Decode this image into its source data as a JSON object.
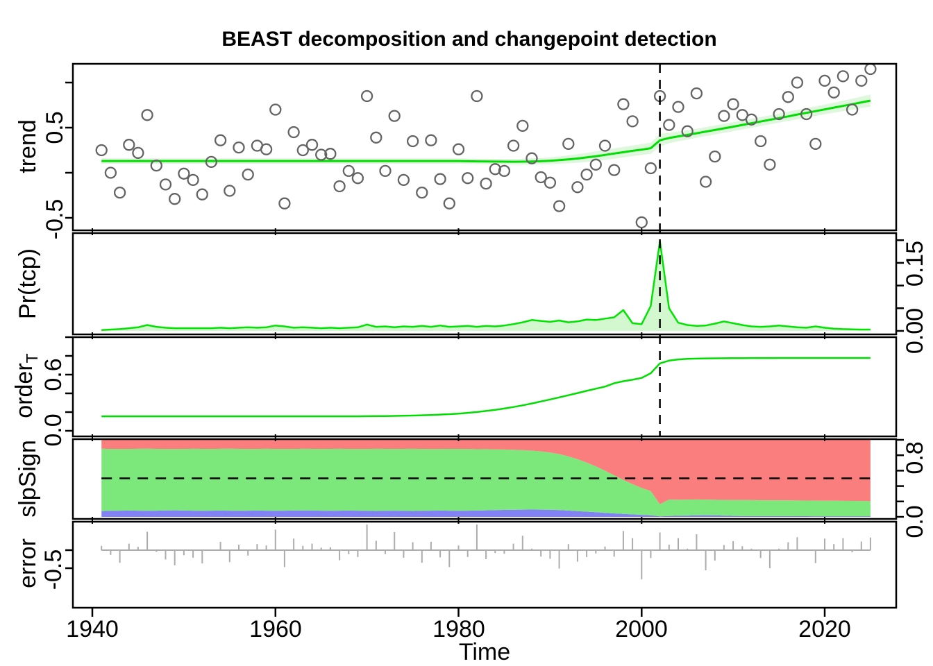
{
  "title": "BEAST decomposition and changepoint detection",
  "x_axis": {
    "label": "Time",
    "tick_years": [
      1940,
      1960,
      1980,
      2000,
      2020
    ],
    "ticks": [
      {
        "label": "1940"
      },
      {
        "label": "1960"
      },
      {
        "label": "1980"
      },
      {
        "label": "2000"
      },
      {
        "label": "2020"
      }
    ]
  },
  "panel_labels": {
    "trend": "trend",
    "pr": "Pr(tcp)",
    "order_base": "order",
    "order_sub": "T",
    "slp": "slpSign",
    "error": "error"
  },
  "tick_labels": {
    "trend_upper": "0.5",
    "trend_lower": "-0.5",
    "pr_upper": "0.15",
    "pr_lower": "0.00",
    "order_upper": "0.6",
    "order_lower": "0.0",
    "slp_upper": "0.8",
    "slp_lower": "0.0",
    "error": "-0.5"
  },
  "colors": {
    "trend_line": "#00DD00",
    "ci_band": "#DFF7DD",
    "scatter_stroke": "#646464",
    "pr_line": "#00E400",
    "pr_fill": "#D3F8D0",
    "order_line": "#00DD00",
    "slp_red": "#FB7E7E",
    "slp_green": "#7CE87C",
    "slp_blue": "#8282F5",
    "error_stem": "#ACACAC",
    "dashed": "#000000"
  },
  "years": [
    1941,
    1942,
    1943,
    1944,
    1945,
    1946,
    1947,
    1948,
    1949,
    1950,
    1951,
    1952,
    1953,
    1954,
    1955,
    1956,
    1957,
    1958,
    1959,
    1960,
    1961,
    1962,
    1963,
    1964,
    1965,
    1966,
    1967,
    1968,
    1969,
    1970,
    1971,
    1972,
    1973,
    1974,
    1975,
    1976,
    1977,
    1978,
    1979,
    1980,
    1981,
    1982,
    1983,
    1984,
    1985,
    1986,
    1987,
    1988,
    1989,
    1990,
    1991,
    1992,
    1993,
    1994,
    1995,
    1996,
    1997,
    1998,
    1999,
    2000,
    2001,
    2002,
    2003,
    2004,
    2005,
    2006,
    2007,
    2008,
    2009,
    2010,
    2011,
    2012,
    2013,
    2014,
    2015,
    2016,
    2017,
    2018,
    2019,
    2020,
    2021,
    2022,
    2023,
    2024,
    2025
  ],
  "chart_data": [
    {
      "type": "scatter",
      "panel": "trend",
      "ylabel": "trend",
      "ylim": [
        -0.62,
        1.22
      ],
      "yticks": [
        -0.5,
        0,
        0.5,
        1
      ],
      "ytick_labels_shown": [
        "0.5",
        "-0.5"
      ],
      "changepoint_year": 2002,
      "scatter": [
        0.25,
        0.0,
        -0.22,
        0.31,
        0.22,
        0.64,
        0.08,
        -0.13,
        -0.29,
        -0.01,
        -0.08,
        -0.24,
        0.12,
        0.36,
        -0.2,
        0.28,
        -0.02,
        0.3,
        0.26,
        0.7,
        -0.34,
        0.45,
        0.25,
        0.31,
        0.2,
        0.21,
        -0.15,
        0.02,
        -0.06,
        0.85,
        0.39,
        0.02,
        0.63,
        -0.08,
        0.35,
        -0.22,
        0.36,
        -0.07,
        -0.34,
        0.26,
        -0.06,
        0.85,
        -0.12,
        0.04,
        0.02,
        0.3,
        0.52,
        0.16,
        -0.05,
        -0.11,
        -0.37,
        0.32,
        -0.16,
        -0.02,
        0.09,
        0.3,
        0.03,
        0.76,
        0.57,
        -0.55,
        0.05,
        0.85,
        0.53,
        0.73,
        0.46,
        0.88,
        -0.1,
        0.18,
        0.63,
        0.76,
        0.64,
        0.59,
        0.35,
        0.09,
        0.65,
        0.84,
        1.0,
        0.65,
        0.32,
        1.02,
        0.89,
        1.07,
        0.7,
        1.02,
        1.15
      ],
      "trend_line": [
        0.13,
        0.13,
        0.13,
        0.13,
        0.13,
        0.13,
        0.13,
        0.13,
        0.13,
        0.13,
        0.13,
        0.13,
        0.13,
        0.13,
        0.13,
        0.13,
        0.13,
        0.13,
        0.13,
        0.13,
        0.13,
        0.13,
        0.13,
        0.13,
        0.13,
        0.13,
        0.13,
        0.13,
        0.13,
        0.13,
        0.13,
        0.13,
        0.13,
        0.13,
        0.13,
        0.13,
        0.13,
        0.13,
        0.13,
        0.13,
        0.128,
        0.126,
        0.125,
        0.124,
        0.123,
        0.122,
        0.123,
        0.125,
        0.128,
        0.133,
        0.14,
        0.148,
        0.158,
        0.17,
        0.183,
        0.198,
        0.213,
        0.228,
        0.243,
        0.256,
        0.272,
        0.36,
        0.385,
        0.403,
        0.42,
        0.438,
        0.456,
        0.474,
        0.492,
        0.511,
        0.53,
        0.549,
        0.568,
        0.587,
        0.606,
        0.625,
        0.645,
        0.664,
        0.683,
        0.702,
        0.722,
        0.741,
        0.76,
        0.78,
        0.8
      ],
      "ci_halfwidth": [
        0.03,
        0.03,
        0.03,
        0.03,
        0.03,
        0.03,
        0.03,
        0.03,
        0.03,
        0.03,
        0.03,
        0.03,
        0.03,
        0.03,
        0.03,
        0.03,
        0.03,
        0.03,
        0.03,
        0.03,
        0.03,
        0.03,
        0.03,
        0.03,
        0.03,
        0.03,
        0.03,
        0.03,
        0.03,
        0.03,
        0.03,
        0.03,
        0.03,
        0.03,
        0.03,
        0.03,
        0.03,
        0.03,
        0.03,
        0.03,
        0.03,
        0.03,
        0.03,
        0.03,
        0.03,
        0.031,
        0.032,
        0.034,
        0.036,
        0.038,
        0.041,
        0.044,
        0.047,
        0.05,
        0.053,
        0.055,
        0.057,
        0.058,
        0.059,
        0.06,
        0.062,
        0.07,
        0.058,
        0.054,
        0.052,
        0.05,
        0.05,
        0.05,
        0.05,
        0.05,
        0.05,
        0.05,
        0.05,
        0.05,
        0.05,
        0.051,
        0.052,
        0.052,
        0.053,
        0.054,
        0.056,
        0.058,
        0.061,
        0.064,
        0.068
      ]
    },
    {
      "type": "area",
      "panel": "Pr(tcp)",
      "ylabel": "Pr(tcp)",
      "ylim": [
        0,
        0.215
      ],
      "yticks": [
        0,
        0.05,
        0.1,
        0.15,
        0.2
      ],
      "ytick_labels_shown": [
        "0.00",
        "0.15"
      ],
      "values": [
        0.002,
        0.003,
        0.004,
        0.006,
        0.008,
        0.013,
        0.009,
        0.007,
        0.006,
        0.006,
        0.006,
        0.006,
        0.006,
        0.007,
        0.006,
        0.007,
        0.008,
        0.007,
        0.008,
        0.012,
        0.01,
        0.007,
        0.008,
        0.007,
        0.006,
        0.007,
        0.006,
        0.007,
        0.008,
        0.014,
        0.009,
        0.01,
        0.008,
        0.01,
        0.009,
        0.011,
        0.009,
        0.012,
        0.009,
        0.01,
        0.011,
        0.009,
        0.011,
        0.01,
        0.012,
        0.015,
        0.019,
        0.024,
        0.022,
        0.02,
        0.023,
        0.019,
        0.021,
        0.025,
        0.024,
        0.027,
        0.03,
        0.046,
        0.017,
        0.015,
        0.055,
        0.198,
        0.05,
        0.018,
        0.013,
        0.011,
        0.012,
        0.016,
        0.021,
        0.017,
        0.013,
        0.01,
        0.009,
        0.01,
        0.012,
        0.01,
        0.008,
        0.007,
        0.01,
        0.007,
        0.005,
        0.004,
        0.0035,
        0.003,
        0.003
      ]
    },
    {
      "type": "line",
      "panel": "orderT",
      "ylabel": "order_T",
      "ylim": [
        -0.06,
        1.0
      ],
      "yticks": [
        0,
        0.2,
        0.4,
        0.6,
        0.8,
        1
      ],
      "ytick_labels_shown": [
        "0.0",
        "0.6"
      ],
      "values": [
        0.155,
        0.155,
        0.155,
        0.155,
        0.155,
        0.155,
        0.155,
        0.155,
        0.155,
        0.155,
        0.155,
        0.155,
        0.155,
        0.155,
        0.155,
        0.155,
        0.155,
        0.155,
        0.155,
        0.155,
        0.155,
        0.155,
        0.155,
        0.155,
        0.155,
        0.155,
        0.155,
        0.155,
        0.155,
        0.156,
        0.157,
        0.158,
        0.159,
        0.161,
        0.163,
        0.166,
        0.169,
        0.173,
        0.178,
        0.184,
        0.192,
        0.201,
        0.212,
        0.224,
        0.238,
        0.254,
        0.272,
        0.292,
        0.313,
        0.335,
        0.357,
        0.38,
        0.403,
        0.427,
        0.45,
        0.472,
        0.508,
        0.53,
        0.545,
        0.565,
        0.615,
        0.72,
        0.75,
        0.762,
        0.768,
        0.771,
        0.773,
        0.774,
        0.775,
        0.776,
        0.776,
        0.777,
        0.777,
        0.777,
        0.778,
        0.778,
        0.778,
        0.778,
        0.778,
        0.778,
        0.778,
        0.778,
        0.778,
        0.778,
        0.778
      ]
    },
    {
      "type": "stacked-area",
      "panel": "slpSign",
      "ylabel": "slpSign",
      "ylim": [
        0,
        1
      ],
      "yticks": [
        0,
        0.2,
        0.4,
        0.6,
        0.8,
        1
      ],
      "ytick_labels_shown": [
        "0.0",
        "0.8"
      ],
      "dashed_level": 0.5,
      "stack_order_bottom_to_top": [
        "blue",
        "green",
        "red"
      ],
      "series": [
        {
          "name": "blue",
          "values": [
            0.075,
            0.078,
            0.08,
            0.082,
            0.08,
            0.078,
            0.08,
            0.083,
            0.085,
            0.082,
            0.08,
            0.078,
            0.08,
            0.082,
            0.08,
            0.078,
            0.08,
            0.082,
            0.08,
            0.078,
            0.08,
            0.082,
            0.084,
            0.082,
            0.08,
            0.078,
            0.08,
            0.082,
            0.08,
            0.078,
            0.076,
            0.078,
            0.08,
            0.078,
            0.076,
            0.078,
            0.08,
            0.082,
            0.08,
            0.078,
            0.08,
            0.082,
            0.085,
            0.088,
            0.09,
            0.092,
            0.094,
            0.095,
            0.094,
            0.092,
            0.088,
            0.082,
            0.075,
            0.068,
            0.06,
            0.052,
            0.045,
            0.038,
            0.032,
            0.026,
            0.02,
            0.006,
            0.012,
            0.014,
            0.016,
            0.02,
            0.022,
            0.02,
            0.016,
            0.013,
            0.011,
            0.01,
            0.01,
            0.01,
            0.01,
            0.01,
            0.009,
            0.009,
            0.008,
            0.008,
            0.008,
            0.008,
            0.008,
            0.008,
            0.008
          ]
        },
        {
          "name": "green",
          "values": [
            0.81,
            0.804,
            0.8,
            0.8,
            0.804,
            0.807,
            0.803,
            0.798,
            0.795,
            0.8,
            0.804,
            0.805,
            0.802,
            0.802,
            0.805,
            0.805,
            0.801,
            0.8,
            0.804,
            0.804,
            0.8,
            0.8,
            0.8,
            0.801,
            0.802,
            0.805,
            0.804,
            0.8,
            0.801,
            0.804,
            0.808,
            0.805,
            0.802,
            0.805,
            0.808,
            0.804,
            0.8,
            0.799,
            0.803,
            0.804,
            0.8,
            0.796,
            0.794,
            0.789,
            0.785,
            0.78,
            0.774,
            0.765,
            0.756,
            0.743,
            0.727,
            0.703,
            0.675,
            0.637,
            0.595,
            0.548,
            0.495,
            0.442,
            0.393,
            0.349,
            0.315,
            0.159,
            0.213,
            0.208,
            0.208,
            0.206,
            0.202,
            0.202,
            0.204,
            0.206,
            0.207,
            0.207,
            0.206,
            0.205,
            0.205,
            0.204,
            0.204,
            0.203,
            0.203,
            0.202,
            0.201,
            0.2,
            0.199,
            0.198,
            0.196
          ]
        },
        {
          "name": "red",
          "values": [
            0.115,
            0.118,
            0.12,
            0.118,
            0.116,
            0.115,
            0.117,
            0.119,
            0.12,
            0.118,
            0.116,
            0.117,
            0.118,
            0.116,
            0.115,
            0.117,
            0.119,
            0.118,
            0.116,
            0.118,
            0.12,
            0.118,
            0.116,
            0.117,
            0.118,
            0.117,
            0.116,
            0.118,
            0.119,
            0.118,
            0.116,
            0.117,
            0.118,
            0.117,
            0.116,
            0.118,
            0.12,
            0.119,
            0.117,
            0.118,
            0.12,
            0.122,
            0.121,
            0.123,
            0.125,
            0.128,
            0.132,
            0.14,
            0.15,
            0.165,
            0.185,
            0.215,
            0.25,
            0.295,
            0.345,
            0.4,
            0.46,
            0.52,
            0.575,
            0.625,
            0.665,
            0.835,
            0.775,
            0.778,
            0.776,
            0.774,
            0.776,
            0.778,
            0.78,
            0.781,
            0.782,
            0.783,
            0.784,
            0.785,
            0.785,
            0.786,
            0.787,
            0.788,
            0.789,
            0.79,
            0.791,
            0.792,
            0.793,
            0.794,
            0.796
          ]
        }
      ]
    },
    {
      "type": "stem",
      "panel": "error",
      "ylabel": "error",
      "ylim": [
        -0.95,
        0.78
      ],
      "yticks": [
        0,
        -0.5
      ],
      "ytick_labels_shown": [
        "-0.5"
      ],
      "values": [
        0.12,
        -0.13,
        -0.35,
        0.18,
        0.09,
        0.51,
        -0.05,
        -0.26,
        -0.42,
        -0.14,
        -0.21,
        -0.37,
        -0.01,
        0.23,
        -0.33,
        0.15,
        -0.15,
        0.17,
        0.13,
        0.57,
        -0.47,
        0.32,
        0.12,
        0.18,
        0.07,
        0.08,
        -0.28,
        -0.11,
        -0.19,
        0.72,
        0.26,
        -0.11,
        0.5,
        -0.21,
        0.22,
        -0.35,
        0.23,
        -0.2,
        -0.47,
        0.13,
        -0.19,
        0.72,
        -0.25,
        -0.08,
        -0.1,
        0.18,
        0.4,
        0.04,
        -0.18,
        -0.24,
        -0.51,
        0.17,
        -0.32,
        -0.19,
        -0.09,
        0.1,
        -0.18,
        0.53,
        0.33,
        -0.81,
        -0.22,
        0.49,
        0.15,
        0.33,
        0.04,
        0.44,
        -0.56,
        -0.29,
        0.14,
        0.25,
        0.11,
        0.04,
        -0.22,
        -0.5,
        0.04,
        0.22,
        0.36,
        -0.01,
        -0.36,
        0.32,
        0.17,
        0.33,
        -0.06,
        0.24,
        0.35
      ]
    }
  ]
}
